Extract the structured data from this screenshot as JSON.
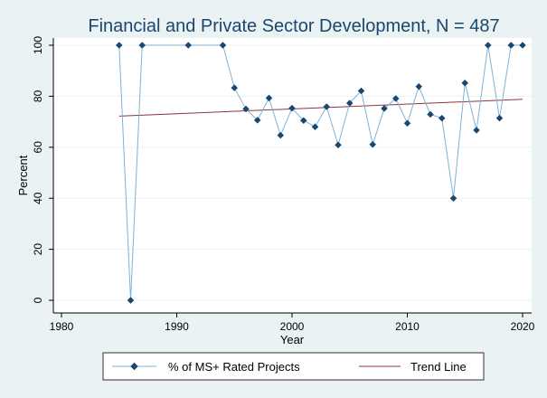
{
  "chart_data": {
    "type": "line",
    "title": "Financial and Private Sector Development, N = 487",
    "xlabel": "Year",
    "ylabel": "Percent",
    "xlim": [
      1980,
      2020
    ],
    "ylim": [
      0,
      100
    ],
    "xticks": [
      1980,
      1990,
      2000,
      2010,
      2020
    ],
    "yticks": [
      0,
      20,
      40,
      60,
      80,
      100
    ],
    "grid": "horizontal",
    "legend_position": "bottom",
    "series": [
      {
        "name": "% of MS+ Rated Projects",
        "color": "#7fb3d5",
        "marker_color": "#1a476f",
        "x": [
          1985,
          1986,
          1987,
          1991,
          1994,
          1995,
          1996,
          1997,
          1998,
          1999,
          2000,
          2001,
          2002,
          2003,
          2004,
          2005,
          2006,
          2007,
          2008,
          2009,
          2010,
          2011,
          2012,
          2013,
          2014,
          2015,
          2016,
          2017,
          2018,
          2019,
          2020
        ],
        "y": [
          100,
          0,
          100,
          100,
          100,
          83.3,
          75,
          70.6,
          79.3,
          64.7,
          75.3,
          70.5,
          68,
          75.9,
          60.9,
          77.3,
          82.1,
          61.1,
          75.2,
          79.1,
          69.4,
          83.8,
          72.9,
          71.4,
          40,
          85.2,
          66.7,
          100,
          71.4,
          100,
          100
        ]
      },
      {
        "name": "Trend Line",
        "color": "#90353b",
        "x": [
          1985,
          2020
        ],
        "y": [
          72.2,
          78.8
        ]
      }
    ]
  }
}
